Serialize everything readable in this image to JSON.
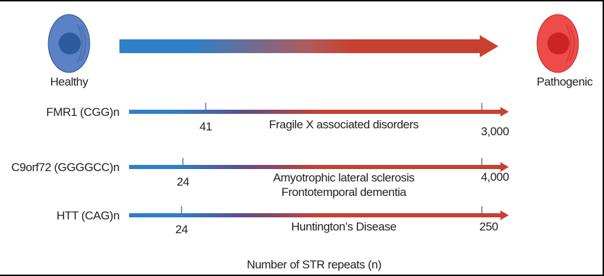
{
  "states": {
    "healthy": "Healthy",
    "pathogenic": "Pathogenic"
  },
  "colors": {
    "healthy": "#2f7fc8",
    "pathogenic": "#c8402f",
    "cell_blue": "#5b82c4",
    "cell_red": "#ef4b4b"
  },
  "genes": [
    {
      "label": "FMR1 (CGG)n",
      "low": "41",
      "high": "3,000",
      "disease": [
        "Fragile X associated disorders"
      ]
    },
    {
      "label": "C9orf72 (GGGGCC)n",
      "low": "24",
      "high": "4,000",
      "disease": [
        "Amyotrophic lateral sclerosis",
        "Frontotemporal dementia"
      ]
    },
    {
      "label": "HTT (CAG)n",
      "low": "24",
      "high": "250",
      "disease": [
        "Huntington’s Disease"
      ]
    }
  ],
  "axis_label": "Number of STR repeats (n)"
}
